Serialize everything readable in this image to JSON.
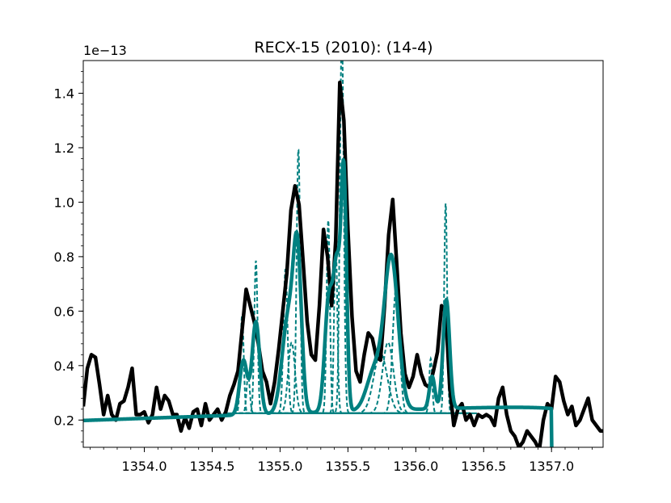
{
  "chart_data": {
    "type": "line",
    "title": "RECX-15 (2010): (14-4)",
    "xlabel": "",
    "ylabel": "",
    "y_offset_text": "1e−13",
    "xlim": [
      1353.55,
      1357.38
    ],
    "ylim": [
      0.1,
      1.52
    ],
    "x_ticks": [
      1354.0,
      1354.5,
      1355.0,
      1355.5,
      1356.0,
      1356.5,
      1357.0
    ],
    "x_tick_labels": [
      "1354.0",
      "1354.5",
      "1355.0",
      "1355.5",
      "1356.0",
      "1356.5",
      "1357.0"
    ],
    "y_ticks": [
      0.2,
      0.4,
      0.6,
      0.8,
      1.0,
      1.2,
      1.4
    ],
    "y_tick_labels": [
      "0.2",
      "0.4",
      "0.6",
      "0.8",
      "1.0",
      "1.2",
      "1.4"
    ],
    "grid": false,
    "colors": {
      "observed": "#000000",
      "model": "#008080",
      "components": "#008080"
    },
    "series": [
      {
        "style": "observed",
        "x": [
          1353.55,
          1353.58,
          1353.61,
          1353.64,
          1353.67,
          1353.7,
          1353.73,
          1353.76,
          1353.79,
          1353.82,
          1353.85,
          1353.88,
          1353.91,
          1353.94,
          1353.97,
          1354.0,
          1354.03,
          1354.06,
          1354.09,
          1354.12,
          1354.15,
          1354.18,
          1354.21,
          1354.24,
          1354.27,
          1354.3,
          1354.33,
          1354.36,
          1354.39,
          1354.42,
          1354.45,
          1354.48,
          1354.51,
          1354.54,
          1354.57,
          1354.6,
          1354.63,
          1354.66,
          1354.69,
          1354.72,
          1354.75,
          1354.78,
          1354.81,
          1354.84,
          1354.87,
          1354.9,
          1354.93,
          1354.96,
          1354.99,
          1355.02,
          1355.05,
          1355.08,
          1355.11,
          1355.14,
          1355.17,
          1355.2,
          1355.23,
          1355.26,
          1355.29,
          1355.32,
          1355.35,
          1355.38,
          1355.41,
          1355.44,
          1355.47,
          1355.5,
          1355.53,
          1355.56,
          1355.59,
          1355.62,
          1355.65,
          1355.68,
          1355.71,
          1355.74,
          1355.77,
          1355.8,
          1355.83,
          1355.86,
          1355.89,
          1355.92,
          1355.95,
          1355.98,
          1356.01,
          1356.04,
          1356.07,
          1356.1,
          1356.13,
          1356.16,
          1356.19,
          1356.22,
          1356.25,
          1356.28,
          1356.31,
          1356.34,
          1356.37,
          1356.4,
          1356.43,
          1356.46,
          1356.49,
          1356.52,
          1356.55,
          1356.58,
          1356.61,
          1356.64,
          1356.67,
          1356.7,
          1356.73,
          1356.76,
          1356.79,
          1356.82,
          1356.85,
          1356.88,
          1356.91,
          1356.94,
          1356.97,
          1357.0,
          1357.03,
          1357.06,
          1357.09,
          1357.12,
          1357.15,
          1357.18,
          1357.21,
          1357.24,
          1357.27,
          1357.3,
          1357.33,
          1357.36,
          1357.38
        ],
        "y": [
          0.25,
          0.39,
          0.44,
          0.43,
          0.33,
          0.22,
          0.29,
          0.22,
          0.2,
          0.26,
          0.27,
          0.32,
          0.39,
          0.22,
          0.22,
          0.23,
          0.19,
          0.22,
          0.32,
          0.24,
          0.29,
          0.27,
          0.22,
          0.22,
          0.16,
          0.21,
          0.17,
          0.23,
          0.24,
          0.18,
          0.26,
          0.2,
          0.22,
          0.24,
          0.2,
          0.23,
          0.29,
          0.33,
          0.38,
          0.53,
          0.68,
          0.62,
          0.56,
          0.48,
          0.38,
          0.34,
          0.26,
          0.34,
          0.46,
          0.6,
          0.74,
          0.97,
          1.06,
          0.99,
          0.78,
          0.56,
          0.44,
          0.42,
          0.62,
          0.9,
          0.8,
          0.62,
          0.86,
          1.44,
          1.3,
          0.9,
          0.58,
          0.38,
          0.34,
          0.44,
          0.52,
          0.5,
          0.43,
          0.42,
          0.62,
          0.88,
          1.01,
          0.77,
          0.52,
          0.37,
          0.32,
          0.36,
          0.44,
          0.37,
          0.33,
          0.32,
          0.38,
          0.45,
          0.62,
          0.6,
          0.32,
          0.18,
          0.24,
          0.26,
          0.2,
          0.22,
          0.18,
          0.22,
          0.21,
          0.22,
          0.21,
          0.18,
          0.28,
          0.32,
          0.22,
          0.16,
          0.14,
          0.1,
          0.12,
          0.16,
          0.14,
          0.12,
          0.09,
          0.2,
          0.26,
          0.24,
          0.36,
          0.34,
          0.27,
          0.22,
          0.25,
          0.18,
          0.2,
          0.24,
          0.28,
          0.2,
          0.18,
          0.16,
          0.16
        ]
      },
      {
        "style": "model",
        "continuum": {
          "y": 0.2,
          "slope_per_unit": 0.018,
          "x0": 1353.55
        },
        "tail": {
          "center": 1357.0,
          "depth": 0.02,
          "width": 0.3
        },
        "peaks": [
          {
            "x": 1354.73,
            "amp": 0.2,
            "sigma": 0.028
          },
          {
            "x": 1354.822,
            "amp": 0.34,
            "sigma": 0.028
          },
          {
            "x": 1355.06,
            "amp": 0.35,
            "sigma": 0.045
          },
          {
            "x": 1355.128,
            "amp": 0.54,
            "sigma": 0.03
          },
          {
            "x": 1355.36,
            "amp": 0.42,
            "sigma": 0.03
          },
          {
            "x": 1355.42,
            "amp": 0.49,
            "sigma": 0.025
          },
          {
            "x": 1355.47,
            "amp": 0.85,
            "sigma": 0.02
          },
          {
            "x": 1355.7,
            "amp": 0.15,
            "sigma": 0.06
          },
          {
            "x": 1355.82,
            "amp": 0.55,
            "sigma": 0.05
          },
          {
            "x": 1356.12,
            "amp": 0.12,
            "sigma": 0.02
          },
          {
            "x": 1356.225,
            "amp": 0.4,
            "sigma": 0.024
          }
        ]
      },
      {
        "style": "components",
        "baseline": 0.225,
        "x_range": [
          1354.65,
          1356.4
        ],
        "peaks": [
          {
            "x": 1354.72,
            "amp": 0.36,
            "sigma": 0.012
          },
          {
            "x": 1354.765,
            "amp": 0.14,
            "sigma": 0.012
          },
          {
            "x": 1354.822,
            "amp": 0.56,
            "sigma": 0.012
          },
          {
            "x": 1355.04,
            "amp": 0.53,
            "sigma": 0.015
          },
          {
            "x": 1355.085,
            "amp": 0.26,
            "sigma": 0.025
          },
          {
            "x": 1355.135,
            "amp": 0.97,
            "sigma": 0.013
          },
          {
            "x": 1355.355,
            "amp": 0.71,
            "sigma": 0.012
          },
          {
            "x": 1355.41,
            "amp": 0.62,
            "sigma": 0.012
          },
          {
            "x": 1355.455,
            "amp": 1.4,
            "sigma": 0.014
          },
          {
            "x": 1355.74,
            "amp": 0.22,
            "sigma": 0.05
          },
          {
            "x": 1355.795,
            "amp": 0.26,
            "sigma": 0.04
          },
          {
            "x": 1355.855,
            "amp": 0.46,
            "sigma": 0.025
          },
          {
            "x": 1356.11,
            "amp": 0.2,
            "sigma": 0.011
          },
          {
            "x": 1356.22,
            "amp": 0.77,
            "sigma": 0.011
          }
        ]
      }
    ]
  }
}
